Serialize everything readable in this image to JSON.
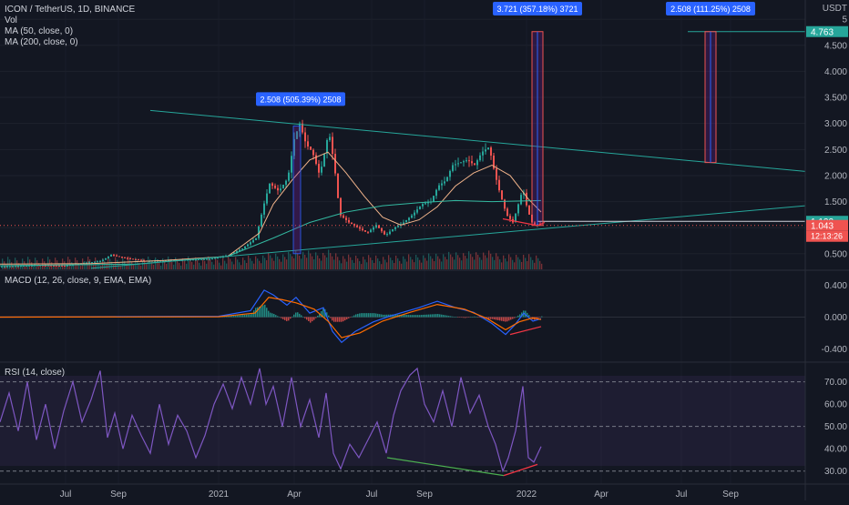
{
  "header": {
    "symbol": "ICON / TetherUS, 1D, BINANCE",
    "vol": "Vol",
    "ma50": "MA (50, close, 0)",
    "ma200": "MA (200, close, 0)"
  },
  "macd_label": "MACD (12, 26, close, 9, EMA, EMA)",
  "rsi_label": "RSI (14, close)",
  "colors": {
    "background": "#131722",
    "up": "#26a69a",
    "down": "#ef5350",
    "ma50": "#f0b38a",
    "ma200": "#33b8a0",
    "trendline": "#26a69a",
    "macd": "#2962ff",
    "signal": "#ff6d00",
    "rsi": "#7e57c2",
    "divergence": "#f23645",
    "callout": "#2962ff"
  },
  "chart_data": {
    "type": "candlestick",
    "price_axis": {
      "unit": "USDT",
      "ticks": [
        "0.500",
        "1.000",
        "1.500",
        "2.000",
        "2.500",
        "3.000",
        "3.500",
        "4.000",
        "4.500",
        "5"
      ],
      "ylim": [
        0.2,
        5.3
      ]
    },
    "time_axis": {
      "labels": [
        "Jul",
        "Sep",
        "2021",
        "Apr",
        "Jul",
        "Sep",
        "2022",
        "Apr",
        "Jul",
        "Sep"
      ]
    },
    "price_series": [
      {
        "t": 0,
        "v": 0.25
      },
      {
        "t": 40,
        "v": 0.28
      },
      {
        "t": 70,
        "v": 0.27
      },
      {
        "t": 90,
        "v": 0.32
      },
      {
        "t": 110,
        "v": 0.36
      },
      {
        "t": 121,
        "v": 0.48
      },
      {
        "t": 135,
        "v": 0.42
      },
      {
        "t": 160,
        "v": 0.36
      },
      {
        "t": 200,
        "v": 0.38
      },
      {
        "t": 230,
        "v": 0.4
      },
      {
        "t": 250,
        "v": 0.47
      },
      {
        "t": 265,
        "v": 0.6
      },
      {
        "t": 280,
        "v": 0.8
      },
      {
        "t": 288,
        "v": 1.4
      },
      {
        "t": 295,
        "v": 1.85
      },
      {
        "t": 305,
        "v": 1.7
      },
      {
        "t": 315,
        "v": 1.95
      },
      {
        "t": 322,
        "v": 2.7
      },
      {
        "t": 328,
        "v": 3.0
      },
      {
        "t": 335,
        "v": 2.6
      },
      {
        "t": 342,
        "v": 2.45
      },
      {
        "t": 350,
        "v": 2.0
      },
      {
        "t": 360,
        "v": 2.85
      },
      {
        "t": 366,
        "v": 2.2
      },
      {
        "t": 372,
        "v": 1.25
      },
      {
        "t": 382,
        "v": 1.1
      },
      {
        "t": 392,
        "v": 1.0
      },
      {
        "t": 402,
        "v": 0.9
      },
      {
        "t": 412,
        "v": 1.05
      },
      {
        "t": 422,
        "v": 0.85
      },
      {
        "t": 432,
        "v": 1.0
      },
      {
        "t": 442,
        "v": 1.1
      },
      {
        "t": 452,
        "v": 1.25
      },
      {
        "t": 462,
        "v": 1.45
      },
      {
        "t": 472,
        "v": 1.5
      },
      {
        "t": 480,
        "v": 1.8
      },
      {
        "t": 488,
        "v": 1.9
      },
      {
        "t": 496,
        "v": 2.2
      },
      {
        "t": 504,
        "v": 2.25
      },
      {
        "t": 512,
        "v": 2.3
      },
      {
        "t": 520,
        "v": 2.2
      },
      {
        "t": 528,
        "v": 2.45
      },
      {
        "t": 536,
        "v": 2.55
      },
      {
        "t": 542,
        "v": 2.05
      },
      {
        "t": 548,
        "v": 1.65
      },
      {
        "t": 555,
        "v": 1.25
      },
      {
        "t": 562,
        "v": 1.1
      },
      {
        "t": 568,
        "v": 1.45
      },
      {
        "t": 573,
        "v": 1.75
      },
      {
        "t": 578,
        "v": 1.35
      },
      {
        "t": 584,
        "v": 1.05
      },
      {
        "t": 590,
        "v": 1.08
      },
      {
        "t": 594,
        "v": 1.043
      }
    ],
    "ma50_series": [
      {
        "t": 0,
        "v": 0.3
      },
      {
        "t": 100,
        "v": 0.31
      },
      {
        "t": 180,
        "v": 0.37
      },
      {
        "t": 250,
        "v": 0.45
      },
      {
        "t": 285,
        "v": 0.9
      },
      {
        "t": 300,
        "v": 1.45
      },
      {
        "t": 320,
        "v": 1.9
      },
      {
        "t": 340,
        "v": 2.3
      },
      {
        "t": 360,
        "v": 2.45
      },
      {
        "t": 380,
        "v": 2.05
      },
      {
        "t": 400,
        "v": 1.6
      },
      {
        "t": 420,
        "v": 1.2
      },
      {
        "t": 440,
        "v": 1.05
      },
      {
        "t": 460,
        "v": 1.15
      },
      {
        "t": 480,
        "v": 1.4
      },
      {
        "t": 500,
        "v": 1.8
      },
      {
        "t": 520,
        "v": 2.05
      },
      {
        "t": 540,
        "v": 2.2
      },
      {
        "t": 560,
        "v": 2.0
      },
      {
        "t": 580,
        "v": 1.55
      },
      {
        "t": 594,
        "v": 1.3
      }
    ],
    "ma200_series": [
      {
        "t": 0,
        "v": 0.27
      },
      {
        "t": 150,
        "v": 0.3
      },
      {
        "t": 250,
        "v": 0.45
      },
      {
        "t": 300,
        "v": 0.8
      },
      {
        "t": 340,
        "v": 1.1
      },
      {
        "t": 380,
        "v": 1.3
      },
      {
        "t": 420,
        "v": 1.42
      },
      {
        "t": 460,
        "v": 1.48
      },
      {
        "t": 500,
        "v": 1.52
      },
      {
        "t": 540,
        "v": 1.5
      },
      {
        "t": 594,
        "v": 1.52
      }
    ],
    "trendlines": [
      {
        "from": {
          "t": 165,
          "v": 3.25
        },
        "to": {
          "t": 884,
          "v": 2.08
        }
      },
      {
        "from": {
          "t": 100,
          "v": 0.22
        },
        "to": {
          "t": 884,
          "v": 1.42
        }
      }
    ],
    "levels": [
      {
        "label": "4.763",
        "value": 4.763,
        "color": "#26a69a"
      },
      {
        "label": "1.122",
        "value": 1.122,
        "color": "#26a69a"
      },
      {
        "label": "1.043",
        "value": 1.043,
        "color": "#ef5350"
      }
    ],
    "countdown": "12:13:26",
    "callouts": [
      {
        "text": "2.508 (505.39%) 2508",
        "t": 330,
        "v": 3.25
      },
      {
        "text": "3.721 (357.18%) 3721",
        "t": 590,
        "v": 5.3
      },
      {
        "text": "2.508 (111.25%) 2508",
        "t": 780,
        "v": 5.3
      }
    ],
    "projection_bars": [
      {
        "t": 590,
        "from": 1.043,
        "to": 4.763
      },
      {
        "t": 780,
        "from": 2.25,
        "to": 4.763
      }
    ],
    "macd": {
      "ticks": [
        "0.400",
        "0.000",
        "-0.400"
      ],
      "ylim": [
        -0.5,
        0.5
      ],
      "macd_series": [
        {
          "t": 0,
          "v": 0.0
        },
        {
          "t": 240,
          "v": 0.01
        },
        {
          "t": 275,
          "v": 0.08
        },
        {
          "t": 290,
          "v": 0.34
        },
        {
          "t": 300,
          "v": 0.28
        },
        {
          "t": 315,
          "v": 0.15
        },
        {
          "t": 325,
          "v": 0.25
        },
        {
          "t": 340,
          "v": 0.05
        },
        {
          "t": 355,
          "v": 0.12
        },
        {
          "t": 365,
          "v": -0.18
        },
        {
          "t": 375,
          "v": -0.32
        },
        {
          "t": 390,
          "v": -0.18
        },
        {
          "t": 410,
          "v": -0.06
        },
        {
          "t": 430,
          "v": 0.02
        },
        {
          "t": 460,
          "v": 0.12
        },
        {
          "t": 480,
          "v": 0.2
        },
        {
          "t": 500,
          "v": 0.12
        },
        {
          "t": 520,
          "v": 0.06
        },
        {
          "t": 540,
          "v": -0.08
        },
        {
          "t": 555,
          "v": -0.22
        },
        {
          "t": 565,
          "v": -0.1
        },
        {
          "t": 575,
          "v": 0.05
        },
        {
          "t": 585,
          "v": -0.05
        },
        {
          "t": 594,
          "v": -0.02
        }
      ],
      "signal_series": [
        {
          "t": 0,
          "v": 0.0
        },
        {
          "t": 240,
          "v": 0.005
        },
        {
          "t": 280,
          "v": 0.05
        },
        {
          "t": 295,
          "v": 0.25
        },
        {
          "t": 310,
          "v": 0.22
        },
        {
          "t": 325,
          "v": 0.18
        },
        {
          "t": 345,
          "v": 0.1
        },
        {
          "t": 360,
          "v": -0.05
        },
        {
          "t": 375,
          "v": -0.26
        },
        {
          "t": 395,
          "v": -0.2
        },
        {
          "t": 420,
          "v": -0.05
        },
        {
          "t": 450,
          "v": 0.06
        },
        {
          "t": 480,
          "v": 0.16
        },
        {
          "t": 510,
          "v": 0.1
        },
        {
          "t": 535,
          "v": -0.02
        },
        {
          "t": 555,
          "v": -0.16
        },
        {
          "t": 570,
          "v": -0.06
        },
        {
          "t": 585,
          "v": -0.01
        },
        {
          "t": 594,
          "v": -0.03
        }
      ],
      "divergence": {
        "from": {
          "t": 560,
          "v": -0.22
        },
        "to": {
          "t": 594,
          "v": -0.12
        }
      }
    },
    "rsi": {
      "ticks": [
        "70.00",
        "60.00",
        "50.00",
        "40.00",
        "30.00"
      ],
      "ylim": [
        25,
        78
      ],
      "series": [
        {
          "t": 0,
          "v": 52
        },
        {
          "t": 10,
          "v": 65
        },
        {
          "t": 20,
          "v": 48
        },
        {
          "t": 30,
          "v": 70
        },
        {
          "t": 40,
          "v": 44
        },
        {
          "t": 50,
          "v": 60
        },
        {
          "t": 60,
          "v": 40
        },
        {
          "t": 70,
          "v": 57
        },
        {
          "t": 80,
          "v": 70
        },
        {
          "t": 90,
          "v": 52
        },
        {
          "t": 100,
          "v": 62
        },
        {
          "t": 110,
          "v": 75
        },
        {
          "t": 118,
          "v": 45
        },
        {
          "t": 126,
          "v": 56
        },
        {
          "t": 135,
          "v": 40
        },
        {
          "t": 145,
          "v": 55
        },
        {
          "t": 155,
          "v": 46
        },
        {
          "t": 165,
          "v": 38
        },
        {
          "t": 175,
          "v": 60
        },
        {
          "t": 185,
          "v": 42
        },
        {
          "t": 195,
          "v": 55
        },
        {
          "t": 205,
          "v": 48
        },
        {
          "t": 215,
          "v": 36
        },
        {
          "t": 225,
          "v": 46
        },
        {
          "t": 235,
          "v": 60
        },
        {
          "t": 245,
          "v": 69
        },
        {
          "t": 255,
          "v": 58
        },
        {
          "t": 265,
          "v": 72
        },
        {
          "t": 275,
          "v": 60
        },
        {
          "t": 285,
          "v": 76
        },
        {
          "t": 292,
          "v": 60
        },
        {
          "t": 300,
          "v": 68
        },
        {
          "t": 310,
          "v": 50
        },
        {
          "t": 320,
          "v": 72
        },
        {
          "t": 330,
          "v": 50
        },
        {
          "t": 340,
          "v": 62
        },
        {
          "t": 350,
          "v": 45
        },
        {
          "t": 358,
          "v": 65
        },
        {
          "t": 366,
          "v": 38
        },
        {
          "t": 374,
          "v": 31
        },
        {
          "t": 384,
          "v": 42
        },
        {
          "t": 394,
          "v": 36
        },
        {
          "t": 404,
          "v": 44
        },
        {
          "t": 414,
          "v": 52
        },
        {
          "t": 424,
          "v": 38
        },
        {
          "t": 432,
          "v": 55
        },
        {
          "t": 440,
          "v": 66
        },
        {
          "t": 450,
          "v": 73
        },
        {
          "t": 458,
          "v": 76
        },
        {
          "t": 466,
          "v": 60
        },
        {
          "t": 476,
          "v": 52
        },
        {
          "t": 486,
          "v": 66
        },
        {
          "t": 496,
          "v": 50
        },
        {
          "t": 506,
          "v": 72
        },
        {
          "t": 516,
          "v": 56
        },
        {
          "t": 526,
          "v": 64
        },
        {
          "t": 536,
          "v": 50
        },
        {
          "t": 544,
          "v": 42
        },
        {
          "t": 552,
          "v": 30
        },
        {
          "t": 558,
          "v": 36
        },
        {
          "t": 566,
          "v": 48
        },
        {
          "t": 574,
          "v": 68
        },
        {
          "t": 580,
          "v": 36
        },
        {
          "t": 586,
          "v": 34
        },
        {
          "t": 594,
          "v": 41
        }
      ],
      "divergence_green": {
        "from": {
          "t": 425,
          "v": 36
        },
        "to": {
          "t": 553,
          "v": 28
        }
      },
      "divergence_red": {
        "from": {
          "t": 553,
          "v": 28
        },
        "to": {
          "t": 590,
          "v": 33
        }
      }
    }
  }
}
